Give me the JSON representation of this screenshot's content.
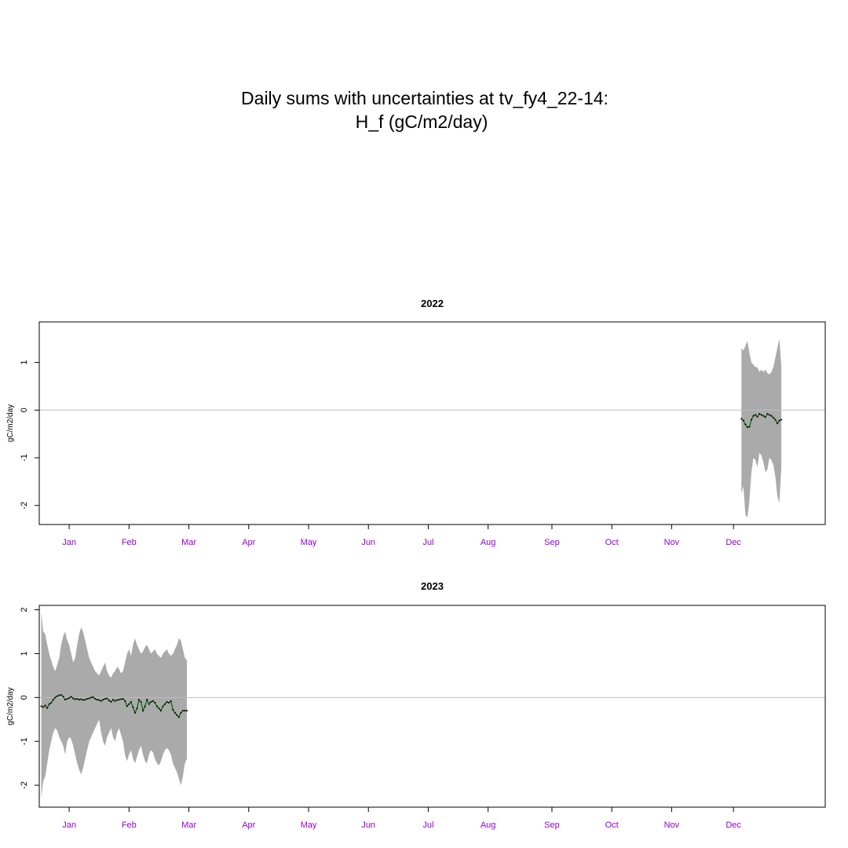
{
  "title": {
    "line1": "Daily sums with uncertainties at tv_fy4_22-14:",
    "line2": "H_f (gC/m2/day)"
  },
  "colors": {
    "band": "#aaaaaa",
    "line": "#006400",
    "zero_line": "#bebebe",
    "month_labels": "#9400d3",
    "axis": "#000000"
  },
  "chart_data": [
    {
      "type": "area",
      "title": "2022",
      "ylabel": "gC/m2/day",
      "xlabel": "",
      "x_unit": "day of year",
      "xlim": [
        -14,
        380
      ],
      "ylim": [
        -2.4,
        1.85
      ],
      "yticks": [
        -2,
        -1,
        0,
        1
      ],
      "ytick_labels": [
        "-2",
        "-1",
        "0",
        "1"
      ],
      "month_ticks": [
        1,
        31,
        61,
        91,
        121,
        151,
        181,
        211,
        243,
        273,
        303,
        334
      ],
      "month_labels": [
        "Jan",
        "Feb",
        "Mar",
        "Apr",
        "May",
        "Jun",
        "Jul",
        "Aug",
        "Sep",
        "Oct",
        "Nov",
        "Dec"
      ],
      "zero_line": true,
      "grid": false,
      "series": [
        {
          "x": [
            338,
            339,
            340,
            341,
            342,
            343,
            344,
            345,
            346,
            347,
            348,
            349,
            350,
            351,
            352,
            353,
            354,
            355,
            356,
            357,
            358
          ],
          "y": [
            -0.18,
            -0.22,
            -0.3,
            -0.36,
            -0.35,
            -0.2,
            -0.12,
            -0.1,
            -0.14,
            -0.08,
            -0.1,
            -0.12,
            -0.15,
            -0.08,
            -0.1,
            -0.12,
            -0.16,
            -0.2,
            -0.28,
            -0.22,
            -0.2
          ],
          "lower": [
            -1.75,
            -1.6,
            -2.2,
            -2.25,
            -1.9,
            -1.3,
            -1.0,
            -1.05,
            -1.2,
            -0.9,
            -0.95,
            -1.1,
            -1.3,
            -1.25,
            -1.0,
            -1.05,
            -1.15,
            -1.4,
            -1.8,
            -1.95,
            -1.2
          ],
          "upper": [
            1.3,
            1.25,
            1.35,
            1.45,
            1.2,
            1.0,
            0.95,
            0.9,
            0.9,
            0.8,
            0.85,
            0.8,
            0.85,
            0.78,
            0.75,
            0.8,
            0.9,
            1.1,
            1.3,
            1.5,
            0.9
          ]
        }
      ]
    },
    {
      "type": "area",
      "title": "2023",
      "ylabel": "gC/m2/day",
      "xlabel": "",
      "x_unit": "day of year",
      "xlim": [
        -14,
        380
      ],
      "ylim": [
        -2.5,
        2.1
      ],
      "yticks": [
        -2,
        -1,
        0,
        1,
        2
      ],
      "ytick_labels": [
        "-2",
        "-1",
        "0",
        "1",
        "2"
      ],
      "month_ticks": [
        1,
        31,
        61,
        91,
        121,
        151,
        181,
        211,
        243,
        273,
        303,
        334
      ],
      "month_labels": [
        "Jan",
        "Feb",
        "Mar",
        "Apr",
        "May",
        "Jun",
        "Jul",
        "Aug",
        "Sep",
        "Oct",
        "Nov",
        "Dec"
      ],
      "zero_line": true,
      "grid": false,
      "series": [
        {
          "x": [
            -13,
            -12,
            -11,
            -10,
            -9,
            -8,
            -7,
            -6,
            -5,
            -4,
            -3,
            -2,
            -1,
            0,
            1,
            2,
            3,
            4,
            5,
            6,
            7,
            8,
            9,
            10,
            11,
            12,
            13,
            14,
            15,
            16,
            17,
            18,
            19,
            20,
            21,
            22,
            23,
            24,
            25,
            26,
            27,
            28,
            29,
            30,
            31,
            32,
            33,
            34,
            35,
            36,
            37,
            38,
            39,
            40,
            41,
            42,
            43,
            44,
            45,
            46,
            47,
            48,
            49,
            50,
            51,
            52,
            53,
            54,
            55,
            56,
            57,
            58,
            59,
            60
          ],
          "y": [
            -0.2,
            -0.22,
            -0.18,
            -0.24,
            -0.15,
            -0.12,
            -0.05,
            0.0,
            0.03,
            0.05,
            0.06,
            0.02,
            -0.05,
            -0.03,
            -0.01,
            0.02,
            -0.02,
            -0.04,
            -0.03,
            -0.05,
            -0.04,
            -0.06,
            -0.05,
            -0.03,
            -0.02,
            0.0,
            0.01,
            -0.03,
            -0.05,
            -0.06,
            -0.08,
            -0.05,
            -0.03,
            -0.02,
            -0.07,
            -0.1,
            -0.05,
            -0.08,
            -0.06,
            -0.05,
            -0.04,
            -0.03,
            -0.08,
            -0.2,
            -0.15,
            -0.1,
            -0.22,
            -0.35,
            -0.25,
            -0.05,
            -0.1,
            -0.3,
            -0.2,
            -0.05,
            -0.15,
            -0.1,
            -0.08,
            -0.12,
            -0.2,
            -0.25,
            -0.3,
            -0.2,
            -0.15,
            -0.1,
            -0.12,
            -0.08,
            -0.28,
            -0.35,
            -0.4,
            -0.45,
            -0.35,
            -0.3,
            -0.3,
            -0.3
          ],
          "lower": [
            -2.3,
            -1.9,
            -1.8,
            -1.5,
            -1.2,
            -1.0,
            -0.8,
            -0.7,
            -0.75,
            -0.9,
            -1.0,
            -1.1,
            -1.3,
            -1.0,
            -0.9,
            -0.95,
            -1.1,
            -1.3,
            -1.5,
            -1.65,
            -1.75,
            -1.6,
            -1.4,
            -1.2,
            -1.0,
            -0.9,
            -0.8,
            -0.7,
            -0.6,
            -0.5,
            -0.8,
            -1.0,
            -1.1,
            -0.9,
            -0.8,
            -0.7,
            -0.9,
            -1.0,
            -0.8,
            -0.7,
            -0.85,
            -1.0,
            -1.3,
            -1.45,
            -1.3,
            -1.2,
            -1.4,
            -1.5,
            -1.35,
            -1.2,
            -1.1,
            -1.3,
            -1.45,
            -1.5,
            -1.3,
            -1.2,
            -1.25,
            -1.4,
            -1.5,
            -1.55,
            -1.45,
            -1.3,
            -1.2,
            -1.15,
            -1.2,
            -1.3,
            -1.5,
            -1.6,
            -1.7,
            -1.85,
            -2.0,
            -1.8,
            -1.5,
            -1.4
          ],
          "upper": [
            1.95,
            1.5,
            1.45,
            1.2,
            1.0,
            0.85,
            0.7,
            0.6,
            0.75,
            0.9,
            1.2,
            1.4,
            1.5,
            1.3,
            1.2,
            1.0,
            0.8,
            0.9,
            1.2,
            1.45,
            1.6,
            1.5,
            1.3,
            1.1,
            0.9,
            0.8,
            0.7,
            0.6,
            0.55,
            0.5,
            0.6,
            0.7,
            0.8,
            0.6,
            0.5,
            0.45,
            0.55,
            0.6,
            0.7,
            0.65,
            0.55,
            0.6,
            0.8,
            1.0,
            1.1,
            0.95,
            1.2,
            1.35,
            1.2,
            1.1,
            1.0,
            1.05,
            1.15,
            1.2,
            1.1,
            1.0,
            1.05,
            1.1,
            1.0,
            0.95,
            0.9,
            1.0,
            1.05,
            1.1,
            1.0,
            0.95,
            1.0,
            1.1,
            1.2,
            1.35,
            1.3,
            1.1,
            0.9,
            0.85
          ]
        }
      ]
    }
  ]
}
